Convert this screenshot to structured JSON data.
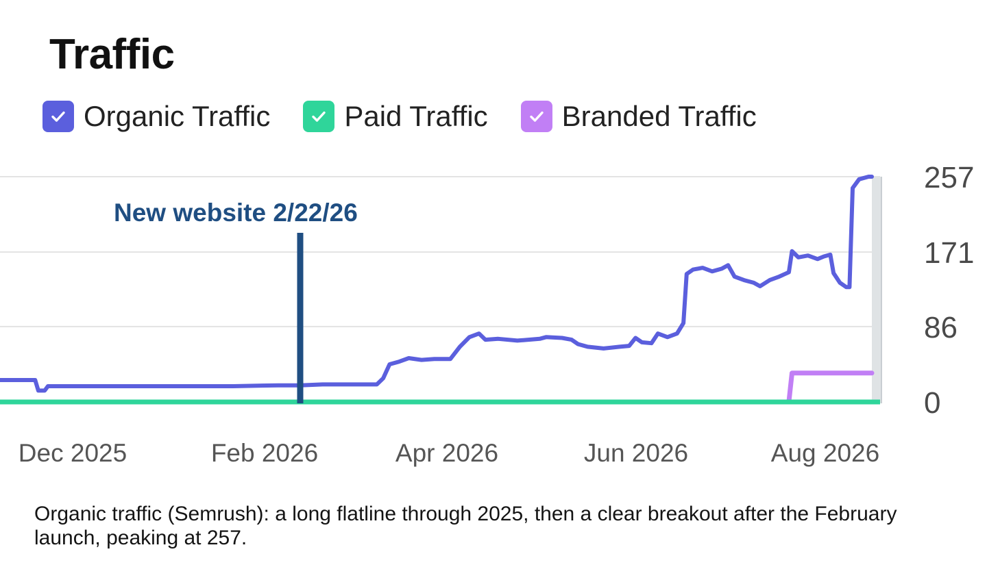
{
  "title": "Traffic",
  "legend": [
    {
      "label": "Organic Traffic",
      "color": "#5b5fdd",
      "checked": true,
      "icon": "checkmark-icon"
    },
    {
      "label": "Paid Traffic",
      "color": "#2fd59a",
      "checked": true,
      "icon": "checkmark-icon"
    },
    {
      "label": "Branded Traffic",
      "color": "#c17ff5",
      "checked": true,
      "icon": "checkmark-icon"
    }
  ],
  "chart_data": {
    "type": "line",
    "title": "Traffic",
    "xlabel": "",
    "ylabel": "",
    "x_ticks": [
      "Dec 2025",
      "Feb 2026",
      "Apr 2026",
      "Jun 2026",
      "Aug 2026"
    ],
    "y_ticks": [
      0,
      86,
      171,
      257
    ],
    "ylim": [
      0,
      257
    ],
    "xlim": [
      "2025-11-20",
      "2026-08-20"
    ],
    "grid": true,
    "y_axis_position": "right",
    "annotation": {
      "label": "New website 2/22/26",
      "date": "2026-02-22",
      "color": "#1f4e82"
    },
    "series": [
      {
        "name": "Organic Traffic",
        "color": "#5b5fdd",
        "points": [
          [
            "2025-11-20",
            25
          ],
          [
            "2025-12-01",
            25
          ],
          [
            "2025-12-02",
            13
          ],
          [
            "2025-12-04",
            13
          ],
          [
            "2025-12-05",
            18
          ],
          [
            "2026-01-01",
            18
          ],
          [
            "2026-02-01",
            18
          ],
          [
            "2026-02-15",
            19
          ],
          [
            "2026-02-22",
            19
          ],
          [
            "2026-03-01",
            20
          ],
          [
            "2026-03-10",
            20
          ],
          [
            "2026-03-18",
            20
          ],
          [
            "2026-03-20",
            27
          ],
          [
            "2026-03-22",
            43
          ],
          [
            "2026-03-25",
            46
          ],
          [
            "2026-03-28",
            50
          ],
          [
            "2026-04-01",
            48
          ],
          [
            "2026-04-05",
            49
          ],
          [
            "2026-04-10",
            49
          ],
          [
            "2026-04-13",
            63
          ],
          [
            "2026-04-16",
            74
          ],
          [
            "2026-04-19",
            78
          ],
          [
            "2026-04-21",
            71
          ],
          [
            "2026-04-25",
            72
          ],
          [
            "2026-05-01",
            70
          ],
          [
            "2026-05-08",
            72
          ],
          [
            "2026-05-10",
            74
          ],
          [
            "2026-05-15",
            73
          ],
          [
            "2026-05-18",
            71
          ],
          [
            "2026-05-20",
            66
          ],
          [
            "2026-05-23",
            63
          ],
          [
            "2026-05-28",
            61
          ],
          [
            "2026-06-02",
            63
          ],
          [
            "2026-06-05",
            64
          ],
          [
            "2026-06-07",
            73
          ],
          [
            "2026-06-09",
            68
          ],
          [
            "2026-06-12",
            67
          ],
          [
            "2026-06-14",
            78
          ],
          [
            "2026-06-17",
            74
          ],
          [
            "2026-06-20",
            78
          ],
          [
            "2026-06-22",
            90
          ],
          [
            "2026-06-23",
            146
          ],
          [
            "2026-06-25",
            151
          ],
          [
            "2026-06-28",
            153
          ],
          [
            "2026-07-01",
            149
          ],
          [
            "2026-07-04",
            152
          ],
          [
            "2026-07-06",
            156
          ],
          [
            "2026-07-08",
            143
          ],
          [
            "2026-07-11",
            139
          ],
          [
            "2026-07-14",
            136
          ],
          [
            "2026-07-16",
            132
          ],
          [
            "2026-07-19",
            139
          ],
          [
            "2026-07-22",
            143
          ],
          [
            "2026-07-25",
            148
          ],
          [
            "2026-07-26",
            172
          ],
          [
            "2026-07-28",
            165
          ],
          [
            "2026-07-31",
            167
          ],
          [
            "2026-08-03",
            163
          ],
          [
            "2026-08-05",
            166
          ],
          [
            "2026-08-07",
            168
          ],
          [
            "2026-08-08",
            147
          ],
          [
            "2026-08-10",
            136
          ],
          [
            "2026-08-12",
            131
          ],
          [
            "2026-08-13",
            131
          ],
          [
            "2026-08-14",
            244
          ],
          [
            "2026-08-16",
            254
          ],
          [
            "2026-08-19",
            257
          ],
          [
            "2026-08-20",
            257
          ]
        ]
      },
      {
        "name": "Paid Traffic",
        "color": "#2fd59a",
        "points": [
          [
            "2025-11-20",
            0
          ],
          [
            "2026-07-26",
            0
          ],
          [
            "2026-08-20",
            0
          ]
        ]
      },
      {
        "name": "Branded Traffic",
        "color": "#c17ff5",
        "points": [
          [
            "2025-11-20",
            0
          ],
          [
            "2026-07-25",
            0
          ],
          [
            "2026-07-26",
            33
          ],
          [
            "2026-08-20",
            33
          ]
        ]
      }
    ]
  },
  "caption": "Organic traffic (Semrush): a long flatline through 2025, then a clear breakout after the February launch, peaking at 257."
}
